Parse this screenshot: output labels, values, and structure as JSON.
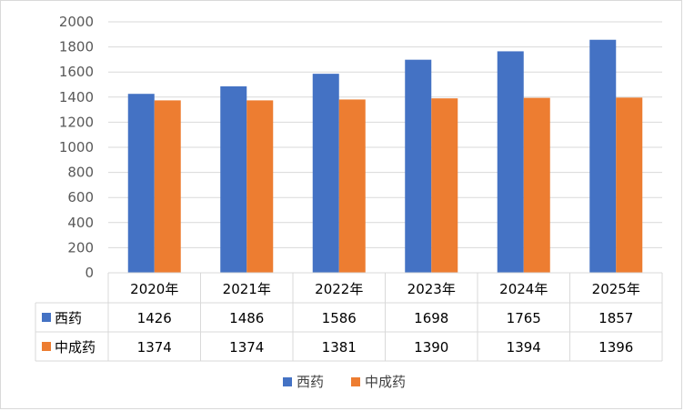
{
  "chart_data": {
    "type": "bar",
    "title": "",
    "xlabel": "",
    "ylabel": "",
    "categories": [
      "2020年",
      "2021年",
      "2022年",
      "2023年",
      "2024年",
      "2025年"
    ],
    "series": [
      {
        "name": "西药",
        "color": "#4472C4",
        "values": [
          1426,
          1486,
          1586,
          1698,
          1765,
          1857
        ]
      },
      {
        "name": "中成药",
        "color": "#ED7D31",
        "values": [
          1374,
          1374,
          1381,
          1390,
          1394,
          1396
        ]
      }
    ],
    "ylim": [
      0,
      2000
    ],
    "yticks": [
      0,
      200,
      400,
      600,
      800,
      1000,
      1200,
      1400,
      1600,
      1800,
      2000
    ],
    "grid": true,
    "data_table": true,
    "legend_position": "bottom"
  }
}
